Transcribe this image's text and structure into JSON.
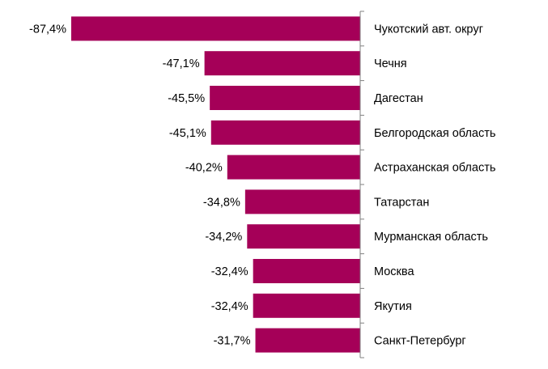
{
  "chart_data": {
    "type": "bar",
    "orientation": "horizontal",
    "categories": [
      "Чукотский авт. округ",
      "Чечня",
      "Дагестан",
      "Белгородская область",
      "Астраханская область",
      "Татарстан",
      "Мурманская область",
      "Москва",
      "Якутия",
      "Санкт-Петербург"
    ],
    "values": [
      -87.4,
      -47.1,
      -45.5,
      -45.1,
      -40.2,
      -34.8,
      -34.2,
      -32.4,
      -32.4,
      -31.7
    ],
    "value_labels": [
      "-87,4%",
      "-47,1%",
      "-45,5%",
      "-45,1%",
      "-40,2%",
      "-34,8%",
      "-34,2%",
      "-32,4%",
      "-32,4%",
      "-31,7%"
    ],
    "unit": "%",
    "xlim": [
      -87.4,
      0
    ],
    "grid": false,
    "legend": "none",
    "colors": {
      "bar": "#a50058",
      "axis": "#808080"
    }
  }
}
